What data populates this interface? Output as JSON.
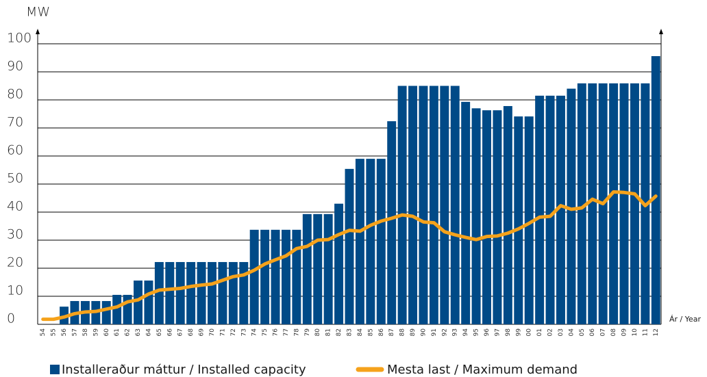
{
  "chart_data": {
    "type": "bar_line",
    "y_label": "MW",
    "x_label": "Ár / Year",
    "categories": [
      "54",
      "55",
      "56",
      "57",
      "58",
      "59",
      "60",
      "61",
      "62",
      "63",
      "64",
      "65",
      "66",
      "67",
      "68",
      "69",
      "70",
      "71",
      "72",
      "73",
      "74",
      "75",
      "76",
      "77",
      "78",
      "79",
      "80",
      "81",
      "82",
      "83",
      "84",
      "85",
      "86",
      "87",
      "88",
      "89",
      "90",
      "91",
      "92",
      "93",
      "94",
      "95",
      "96",
      "97",
      "98",
      "99",
      "00",
      "01",
      "02",
      "03",
      "04",
      "05",
      "06",
      "07",
      "08",
      "09",
      "10",
      "11",
      "12"
    ],
    "series": [
      {
        "name": "Installeraður máttur / Installed capacity",
        "type": "bar",
        "color": "#004a87",
        "values": [
          0,
          0,
          6.3,
          8.3,
          8.3,
          8.3,
          8.3,
          10.5,
          10.5,
          15.6,
          15.6,
          22.2,
          22.2,
          22.2,
          22.2,
          22.2,
          22.2,
          22.2,
          22.2,
          22.2,
          33.7,
          33.7,
          33.7,
          33.7,
          33.7,
          39.3,
          39.3,
          39.3,
          43,
          55.4,
          59,
          59,
          59,
          72.4,
          85,
          85,
          85,
          85,
          85,
          85,
          79.3,
          77,
          76.3,
          76.3,
          77.8,
          74.1,
          74.1,
          81.5,
          81.5,
          81.5,
          84,
          85.9,
          85.9,
          85.9,
          85.9,
          85.9,
          85.9,
          85.9,
          95.6
        ]
      },
      {
        "name": "Mesta last / Maximum demand",
        "type": "line",
        "color": "#f5a21b",
        "values": [
          1.8,
          1.8,
          2.6,
          3.8,
          4.4,
          4.6,
          5.4,
          6.2,
          8,
          8.7,
          10.8,
          12.2,
          12.5,
          12.8,
          13.5,
          14,
          14.4,
          15.7,
          17,
          17.6,
          19.3,
          21.5,
          23,
          24.4,
          27,
          27.8,
          30,
          30.2,
          32,
          33.5,
          33.2,
          35.3,
          36.8,
          37.8,
          39,
          38.5,
          36.5,
          36.2,
          33,
          31.9,
          31,
          30.2,
          31.3,
          31.5,
          32.5,
          34,
          36,
          38.2,
          38.5,
          42.3,
          41,
          41.5,
          44.6,
          43,
          47.2,
          47,
          46.5,
          42.3,
          45.7
        ]
      }
    ],
    "ylim": [
      0,
      100
    ],
    "yticks": [
      0,
      10,
      20,
      30,
      40,
      50,
      60,
      70,
      80,
      90,
      100
    ],
    "grid": true
  }
}
